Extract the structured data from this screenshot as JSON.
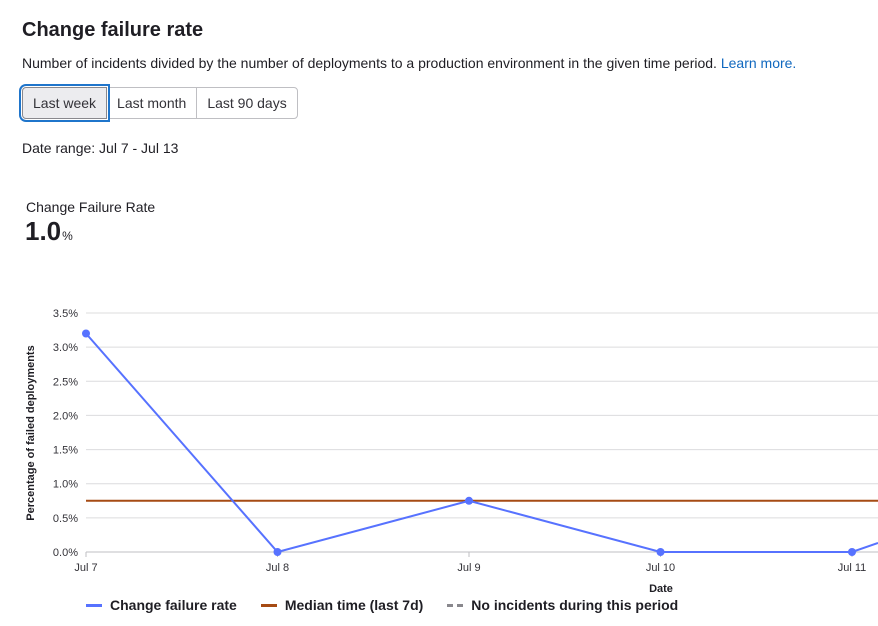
{
  "header": {
    "title": "Change failure rate",
    "description": "Number of incidents divided by the number of deployments to a production environment in the given time period.",
    "learn_more": "Learn more."
  },
  "filters": {
    "options": [
      "Last week",
      "Last month",
      "Last 90 days"
    ],
    "selected": "Last week"
  },
  "date_range": "Date range: Jul 7 - Jul 13",
  "stat": {
    "label": "Change Failure Rate",
    "value": "1.0",
    "unit": "%"
  },
  "colors": {
    "series": "#5772ff",
    "median": "#a64b14",
    "no_incidents": "#89888d",
    "grid": "#dcdcde",
    "axis_text": "#333238",
    "link": "#1068bf"
  },
  "chart_data": {
    "type": "line",
    "title": "",
    "xlabel": "Date",
    "ylabel": "Percentage of failed deployments",
    "categories": [
      "Jul 7",
      "Jul 8",
      "Jul 9",
      "Jul 10",
      "Jul 11"
    ],
    "x_tick_labels": [
      "Jul 7",
      "Jul 8",
      "Jul 9",
      "Jul 10",
      "Jul 11"
    ],
    "y_tick_labels": [
      "0.0%",
      "0.5%",
      "1.0%",
      "1.5%",
      "2.0%",
      "2.5%",
      "3.0%",
      "3.5%"
    ],
    "ylim": [
      0,
      3.5
    ],
    "grid": true,
    "legend_position": "bottom-left",
    "series": [
      {
        "name": "Change failure rate",
        "values": [
          3.2,
          0,
          0.75,
          0,
          0
        ]
      }
    ],
    "median": {
      "name": "Median time (last 7d)",
      "value": 0.75
    },
    "no_incidents": {
      "name": "No incidents during this period"
    }
  }
}
